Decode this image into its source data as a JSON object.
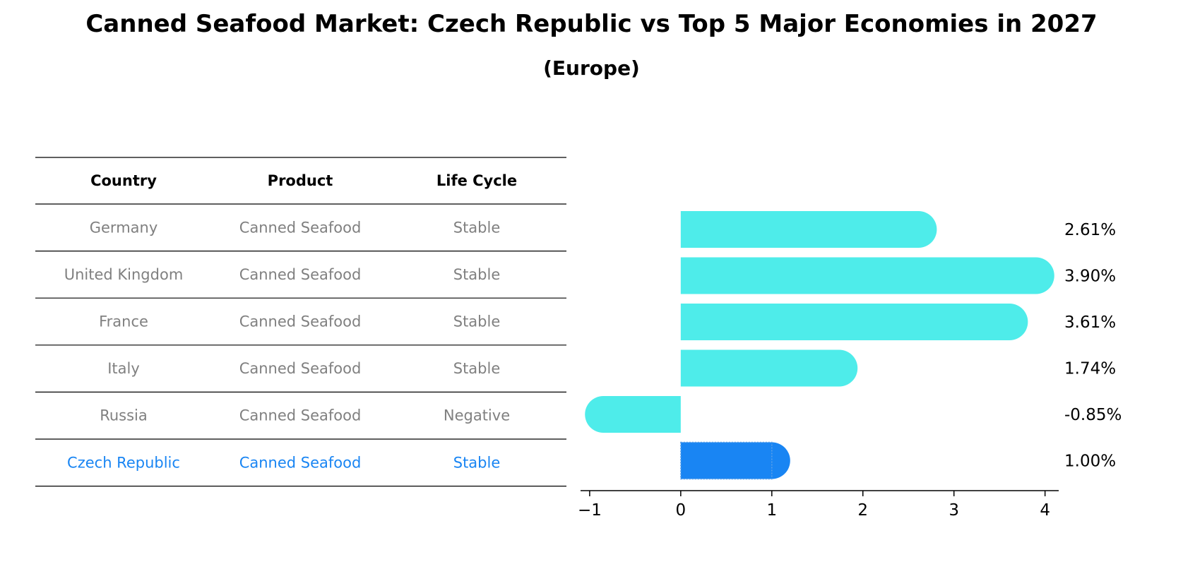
{
  "title": "Canned Seafood Market: Czech Republic vs Top 5 Major Economies in 2027",
  "subtitle": "(Europe)",
  "colors": {
    "bar": "#4EECEA",
    "highlight": "#1985F3",
    "muted_text": "#808080",
    "text": "#000000"
  },
  "table": {
    "headers": [
      "Country",
      "Product",
      "Life Cycle"
    ],
    "rows": [
      [
        "Germany",
        "Canned Seafood",
        "Stable"
      ],
      [
        "United Kingdom",
        "Canned Seafood",
        "Stable"
      ],
      [
        "France",
        "Canned Seafood",
        "Stable"
      ],
      [
        "Italy",
        "Canned Seafood",
        "Stable"
      ],
      [
        "Russia",
        "Canned Seafood",
        "Negative"
      ],
      [
        "Czech Republic",
        "Canned Seafood",
        "Stable"
      ]
    ],
    "highlight_row": "Czech Republic"
  },
  "chart_data": {
    "type": "bar",
    "orientation": "horizontal",
    "categories": [
      "Germany",
      "United Kingdom",
      "France",
      "Italy",
      "Russia",
      "Czech Republic"
    ],
    "values": [
      2.61,
      3.9,
      3.61,
      1.74,
      -0.85,
      1.0
    ],
    "value_labels": [
      "2.61%",
      "3.90%",
      "3.61%",
      "1.74%",
      "-0.85%",
      "1.00%"
    ],
    "highlight_category": "Czech Republic",
    "xlim": [
      -1.1,
      4.15
    ],
    "xticks": [
      -1,
      0,
      1,
      2,
      3,
      4
    ],
    "xtick_labels": [
      "−1",
      "0",
      "1",
      "2",
      "3",
      "4"
    ],
    "grid": false
  }
}
